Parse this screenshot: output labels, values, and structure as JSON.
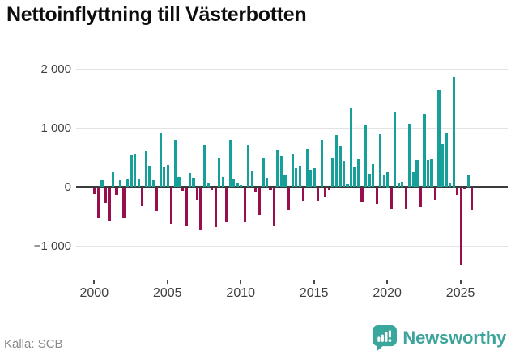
{
  "title": "Nettoinflyttning till Västerbotten",
  "source": "Källa: SCB",
  "brand": {
    "name": "Newsworthy",
    "color": "#3da49b"
  },
  "chart_data": {
    "type": "bar",
    "title": "Nettoinflyttning till Västerbotten",
    "frequency": "quarterly",
    "start": "2000-Q1",
    "xlabel": "",
    "ylabel": "",
    "ylim": [
      -1500,
      2100
    ],
    "grid": "horizontal",
    "colors": {
      "positive": "#17a09a",
      "negative": "#97104d"
    },
    "yticks": [
      {
        "value": -1000,
        "label": "−1 000"
      },
      {
        "value": 0,
        "label": "0"
      },
      {
        "value": 1000,
        "label": "1 000"
      },
      {
        "value": 2000,
        "label": "2 000"
      }
    ],
    "xticks": [
      {
        "year": 2000,
        "label": "2000"
      },
      {
        "year": 2005,
        "label": "2005"
      },
      {
        "year": 2010,
        "label": "2010"
      },
      {
        "year": 2015,
        "label": "2015"
      },
      {
        "year": 2020,
        "label": "2020"
      },
      {
        "year": 2025,
        "label": "2025"
      }
    ],
    "values": [
      -95,
      -510,
      110,
      -245,
      -555,
      255,
      -120,
      130,
      -515,
      140,
      540,
      555,
      150,
      -310,
      605,
      360,
      120,
      -390,
      930,
      345,
      380,
      -605,
      795,
      165,
      -40,
      -640,
      240,
      155,
      -190,
      -715,
      715,
      75,
      -30,
      -655,
      505,
      165,
      -585,
      795,
      150,
      75,
      40,
      -575,
      720,
      275,
      -65,
      -455,
      480,
      155,
      -30,
      -640,
      630,
      530,
      215,
      -375,
      565,
      320,
      365,
      -215,
      645,
      295,
      320,
      -210,
      800,
      -145,
      -30,
      485,
      890,
      700,
      440,
      50,
      1340,
      350,
      475,
      -235,
      1060,
      225,
      395,
      -260,
      895,
      195,
      250,
      -350,
      1265,
      80,
      95,
      -340,
      1075,
      260,
      455,
      -325,
      1245,
      465,
      475,
      -200,
      1650,
      735,
      905,
      80,
      1875,
      -120,
      -1300,
      -20,
      215,
      -370
    ]
  }
}
